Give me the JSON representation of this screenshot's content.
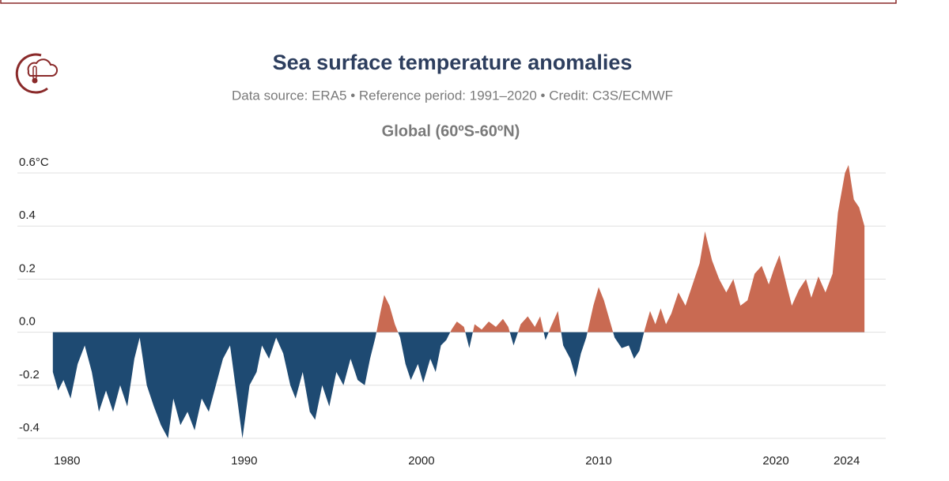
{
  "chart_data": {
    "type": "area",
    "title": "Sea surface temperature anomalies",
    "subtitle": "Data source: ERA5 • Reference period: 1991–2020 • Credit: C3S/ECMWF",
    "panel_title": "Global (60ºS-60ºN)",
    "pos_color": "#c96a52",
    "neg_color": "#1e4a72",
    "grid": true,
    "xlim": [
      1977.2,
      2026.2
    ],
    "xticks": [
      1980,
      1990,
      2000,
      2010,
      2020,
      2024
    ],
    "ylim": [
      -0.4,
      0.6
    ],
    "yticks": [
      -0.4,
      -0.2,
      {
        "value": 0,
        "label": "0.0"
      },
      0.2,
      0.4,
      {
        "value": 0.6,
        "label": "0.6°C"
      }
    ],
    "x": [
      1979.2,
      1979.5,
      1979.8,
      1980.2,
      1980.6,
      1981.0,
      1981.4,
      1981.8,
      1982.2,
      1982.6,
      1983.0,
      1983.4,
      1983.8,
      1984.1,
      1984.5,
      1984.9,
      1985.3,
      1985.7,
      1986.0,
      1986.4,
      1986.8,
      1987.2,
      1987.6,
      1988.0,
      1988.4,
      1988.8,
      1989.2,
      1989.6,
      1989.9,
      1990.3,
      1990.7,
      1991.0,
      1991.4,
      1991.8,
      1992.2,
      1992.6,
      1992.9,
      1993.3,
      1993.7,
      1994.0,
      1994.4,
      1994.8,
      1995.2,
      1995.6,
      1996.0,
      1996.4,
      1996.8,
      1997.1,
      1997.4,
      1997.7,
      1997.9,
      1998.2,
      1998.5,
      1998.8,
      1999.1,
      1999.4,
      1999.8,
      2000.1,
      2000.5,
      2000.8,
      2001.1,
      2001.4,
      2001.7,
      2002.0,
      2002.4,
      2002.7,
      2003.0,
      2003.4,
      2003.8,
      2004.2,
      2004.6,
      2004.9,
      2005.2,
      2005.6,
      2006.0,
      2006.4,
      2006.7,
      2007.0,
      2007.3,
      2007.7,
      2008.0,
      2008.4,
      2008.7,
      2009.0,
      2009.3,
      2009.7,
      2010.0,
      2010.3,
      2010.6,
      2010.9,
      2011.3,
      2011.7,
      2012.0,
      2012.3,
      2012.6,
      2012.9,
      2013.2,
      2013.5,
      2013.8,
      2014.1,
      2014.5,
      2014.9,
      2015.3,
      2015.7,
      2016.0,
      2016.4,
      2016.8,
      2017.2,
      2017.6,
      2018.0,
      2018.4,
      2018.8,
      2019.2,
      2019.6,
      2019.9,
      2020.2,
      2020.6,
      2020.9,
      2021.3,
      2021.7,
      2022.0,
      2022.4,
      2022.8,
      2023.2,
      2023.5,
      2023.9,
      2024.1,
      2024.4,
      2024.7,
      2025.0
    ],
    "values": [
      -0.15,
      -0.22,
      -0.18,
      -0.25,
      -0.12,
      -0.05,
      -0.15,
      -0.3,
      -0.22,
      -0.3,
      -0.2,
      -0.28,
      -0.1,
      -0.02,
      -0.2,
      -0.28,
      -0.35,
      -0.4,
      -0.25,
      -0.35,
      -0.3,
      -0.37,
      -0.25,
      -0.3,
      -0.2,
      -0.1,
      -0.05,
      -0.25,
      -0.4,
      -0.2,
      -0.15,
      -0.05,
      -0.1,
      -0.02,
      -0.08,
      -0.2,
      -0.25,
      -0.15,
      -0.3,
      -0.33,
      -0.2,
      -0.28,
      -0.15,
      -0.2,
      -0.1,
      -0.18,
      -0.2,
      -0.1,
      -0.02,
      0.08,
      0.14,
      0.1,
      0.03,
      -0.02,
      -0.12,
      -0.18,
      -0.12,
      -0.19,
      -0.1,
      -0.15,
      -0.05,
      -0.03,
      0.01,
      0.04,
      0.02,
      -0.06,
      0.03,
      0.01,
      0.04,
      0.02,
      0.05,
      0.02,
      -0.05,
      0.03,
      0.06,
      0.02,
      0.06,
      -0.03,
      0.02,
      0.08,
      -0.05,
      -0.1,
      -0.17,
      -0.08,
      -0.02,
      0.1,
      0.17,
      0.12,
      0.05,
      -0.02,
      -0.06,
      -0.05,
      -0.1,
      -0.07,
      0.01,
      0.08,
      0.03,
      0.09,
      0.03,
      0.07,
      0.15,
      0.1,
      0.18,
      0.26,
      0.38,
      0.27,
      0.2,
      0.15,
      0.2,
      0.1,
      0.12,
      0.22,
      0.25,
      0.18,
      0.24,
      0.29,
      0.18,
      0.1,
      0.16,
      0.2,
      0.13,
      0.21,
      0.15,
      0.22,
      0.45,
      0.6,
      0.63,
      0.5,
      0.47,
      0.4
    ]
  }
}
